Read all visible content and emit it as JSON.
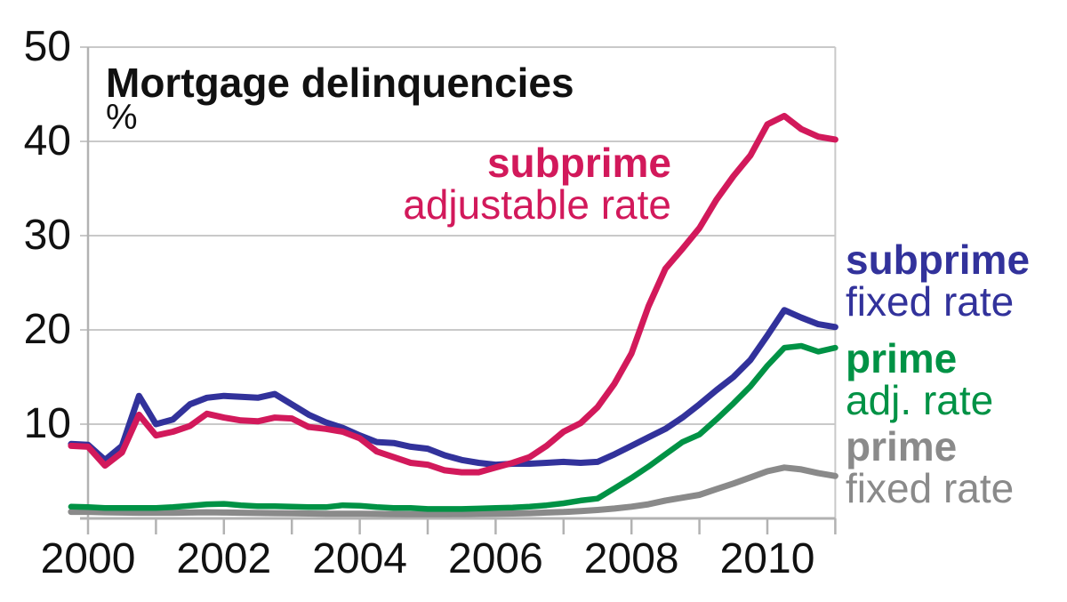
{
  "header": {
    "title": "Mortgage delinquencies",
    "unit": "%"
  },
  "chart_data": {
    "type": "line",
    "title": "Mortgage delinquencies",
    "ylabel": "%",
    "x_start": 1999.75,
    "x_step": 0.25,
    "xlim": [
      2000,
      2011
    ],
    "ylim": [
      0,
      50
    ],
    "grid": "horizontal",
    "yticks": [
      10,
      20,
      30,
      40,
      50
    ],
    "ytick_labels": [
      "10",
      "20",
      "30",
      "40",
      "50"
    ],
    "minor_xticks": [
      2000,
      2001,
      2002,
      2003,
      2004,
      2005,
      2006,
      2007,
      2008,
      2009,
      2010,
      2011
    ],
    "xtick_labels": [
      {
        "x": 2000,
        "text": "2000"
      },
      {
        "x": 2002,
        "text": "2002"
      },
      {
        "x": 2004,
        "text": "2004"
      },
      {
        "x": 2006,
        "text": "2006"
      },
      {
        "x": 2008,
        "text": "2008"
      },
      {
        "x": 2010,
        "text": "2010"
      }
    ],
    "series": [
      {
        "id": "subprime-arm",
        "name": "subprime adjustable rate",
        "color": "#D2195B",
        "legend": [
          "subprime",
          "adjustable rate"
        ],
        "values": [
          7.7,
          7.6,
          5.6,
          7.0,
          11.0,
          8.8,
          9.2,
          9.8,
          11.1,
          10.7,
          10.4,
          10.3,
          10.7,
          10.6,
          9.7,
          9.5,
          9.2,
          8.5,
          7.1,
          6.5,
          5.9,
          5.7,
          5.1,
          4.9,
          4.9,
          5.4,
          5.9,
          6.5,
          7.7,
          9.2,
          10.1,
          11.8,
          14.3,
          17.5,
          22.5,
          26.5,
          28.6,
          30.8,
          33.8,
          36.3,
          38.5,
          41.8,
          42.7,
          41.3,
          40.5,
          40.2
        ]
      },
      {
        "id": "subprime-frm",
        "name": "subprime fixed rate",
        "color": "#32329B",
        "legend": [
          "subprime",
          "fixed rate"
        ],
        "values": [
          7.9,
          7.8,
          6.2,
          7.7,
          13.0,
          10.0,
          10.5,
          12.1,
          12.8,
          13.0,
          12.9,
          12.8,
          13.2,
          12.1,
          11.0,
          10.2,
          9.6,
          8.8,
          8.1,
          8.0,
          7.6,
          7.4,
          6.7,
          6.2,
          5.9,
          5.7,
          5.8,
          5.8,
          5.9,
          6.0,
          5.9,
          6.0,
          6.8,
          7.7,
          8.6,
          9.5,
          10.7,
          12.1,
          13.6,
          15.0,
          16.8,
          19.4,
          22.1,
          21.3,
          20.6,
          20.3
        ]
      },
      {
        "id": "prime-arm",
        "name": "prime adjustable rate",
        "color": "#009245",
        "legend": [
          "prime",
          "adj. rate"
        ],
        "values": [
          1.25,
          1.2,
          1.1,
          1.1,
          1.1,
          1.1,
          1.2,
          1.35,
          1.5,
          1.55,
          1.4,
          1.3,
          1.3,
          1.25,
          1.2,
          1.2,
          1.4,
          1.35,
          1.2,
          1.1,
          1.1,
          1.0,
          1.0,
          1.0,
          1.05,
          1.1,
          1.15,
          1.25,
          1.4,
          1.6,
          1.9,
          2.1,
          3.2,
          4.3,
          5.5,
          6.8,
          8.1,
          8.9,
          10.5,
          12.2,
          14.0,
          16.2,
          18.1,
          18.3,
          17.7,
          18.1
        ]
      },
      {
        "id": "prime-frm",
        "name": "prime fixed rate",
        "color": "#8A8A8A",
        "legend": [
          "prime",
          "fixed rate"
        ],
        "values": [
          0.7,
          0.7,
          0.65,
          0.62,
          0.6,
          0.6,
          0.6,
          0.62,
          0.65,
          0.62,
          0.6,
          0.58,
          0.56,
          0.55,
          0.52,
          0.5,
          0.5,
          0.5,
          0.48,
          0.46,
          0.45,
          0.45,
          0.45,
          0.46,
          0.48,
          0.5,
          0.52,
          0.56,
          0.62,
          0.68,
          0.78,
          0.9,
          1.05,
          1.25,
          1.5,
          1.9,
          2.2,
          2.5,
          3.1,
          3.7,
          4.35,
          5.0,
          5.4,
          5.2,
          4.8,
          4.5
        ]
      }
    ]
  },
  "legends": {
    "subprime_arm": {
      "line1": "subprime",
      "line2": "adjustable rate"
    },
    "subprime_frm": {
      "line1": "subprime",
      "line2": "fixed rate"
    },
    "prime_arm": {
      "line1": "prime",
      "line2": "adj. rate"
    },
    "prime_frm": {
      "line1": "prime",
      "line2": "fixed rate"
    }
  },
  "colors": {
    "subprime_arm": "#D2195B",
    "subprime_frm": "#32329B",
    "prime_arm": "#009245",
    "prime_frm": "#8A8A8A",
    "gridline": "#C9C9C9",
    "axis": "#B2B2B2",
    "text": "#111111"
  }
}
